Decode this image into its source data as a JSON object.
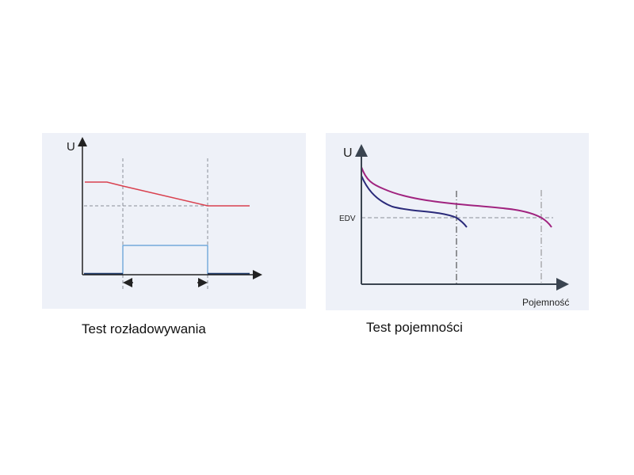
{
  "left_diagram": {
    "y_axis_label": "U",
    "caption": "Test rozładowywania",
    "colors": {
      "voltage": "#d9414f",
      "current": "#5b9bd5",
      "baseline": "#1f3b6b",
      "guides": "#8a8f99"
    }
  },
  "right_diagram": {
    "y_axis_label": "U",
    "x_axis_label": "Pojemność",
    "threshold_label": "EDV",
    "caption": "Test pojemności",
    "colors": {
      "curve_high": "#a0237f",
      "curve_low": "#2a2a7a",
      "axes": "#3a4450"
    }
  }
}
